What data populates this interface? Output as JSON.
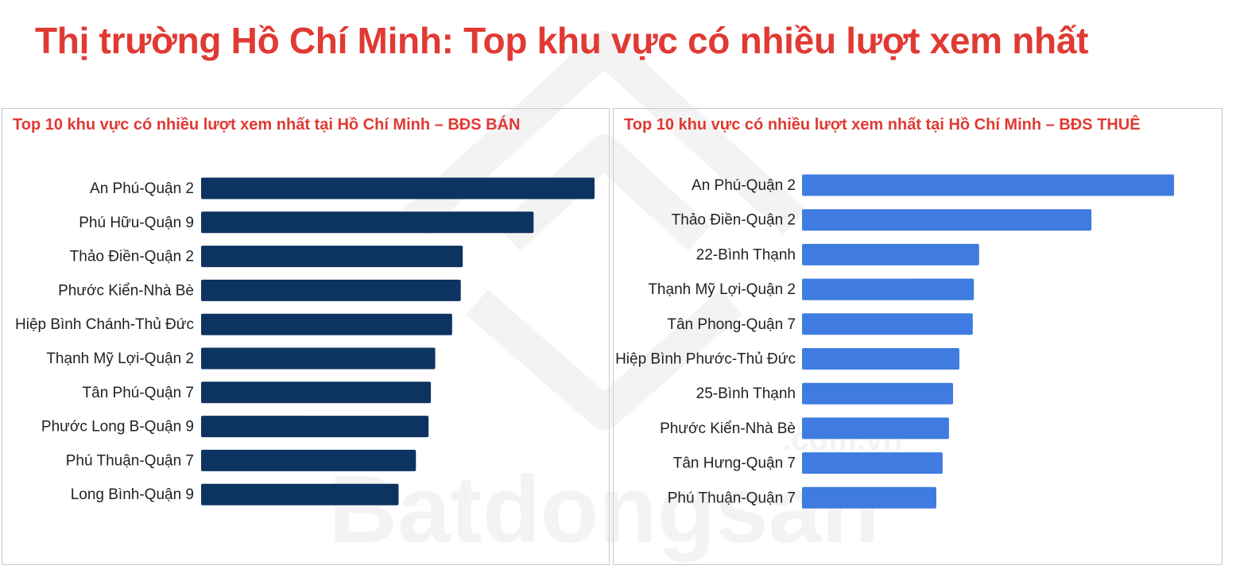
{
  "page": {
    "title": "Thị trường Hồ Chí Minh: Top khu vực có nhiều lượt xem nhất",
    "title_color": "#e03a33",
    "watermark_text": "Batdongsan",
    "watermark_sub": ".com.vn"
  },
  "chart_data": [
    {
      "type": "bar",
      "orientation": "horizontal",
      "title": "Top 10 khu vực có nhiều lượt xem nhất tại Hồ Chí Minh – BĐS BÁN",
      "categories": [
        "An Phú-Quận 2",
        "Phú Hữu-Quận 9",
        "Thảo Điền-Quận 2",
        "Phước Kiển-Nhà Bè",
        "Hiệp Bình Chánh-Thủ Đức",
        "Thạnh Mỹ Lợi-Quận 2",
        "Tân Phú-Quận 7",
        "Phước Long B-Quận 9",
        "Phú Thuận-Quận 7",
        "Long Bình-Quận 9"
      ],
      "values": [
        100,
        84.5,
        66.5,
        66,
        63.8,
        59.5,
        58.4,
        57.8,
        54.6,
        50.2
      ],
      "xlim": [
        0,
        100
      ],
      "grid": false,
      "color": "#0d3461"
    },
    {
      "type": "bar",
      "orientation": "horizontal",
      "title": "Top 10 khu vực có nhiều lượt xem nhất tại Hồ Chí Minh – BĐS THUÊ",
      "categories": [
        "An Phú-Quận 2",
        "Thảo Điền-Quận 2",
        "22-Bình Thạnh",
        "Thạnh Mỹ Lợi-Quận 2",
        "Tân Phong-Quận 7",
        "Hiệp Bình Phước-Thủ Đức",
        "25-Bình Thạnh",
        "Phước Kiển-Nhà Bè",
        "Tân Hưng-Quận 7",
        "Phú Thuận-Quận 7"
      ],
      "values": [
        100,
        77.8,
        47.6,
        46.2,
        45.9,
        42.3,
        40.6,
        39.5,
        37.8,
        36.1
      ],
      "xlim": [
        0,
        100
      ],
      "grid": false,
      "color": "#3f7be0"
    }
  ]
}
